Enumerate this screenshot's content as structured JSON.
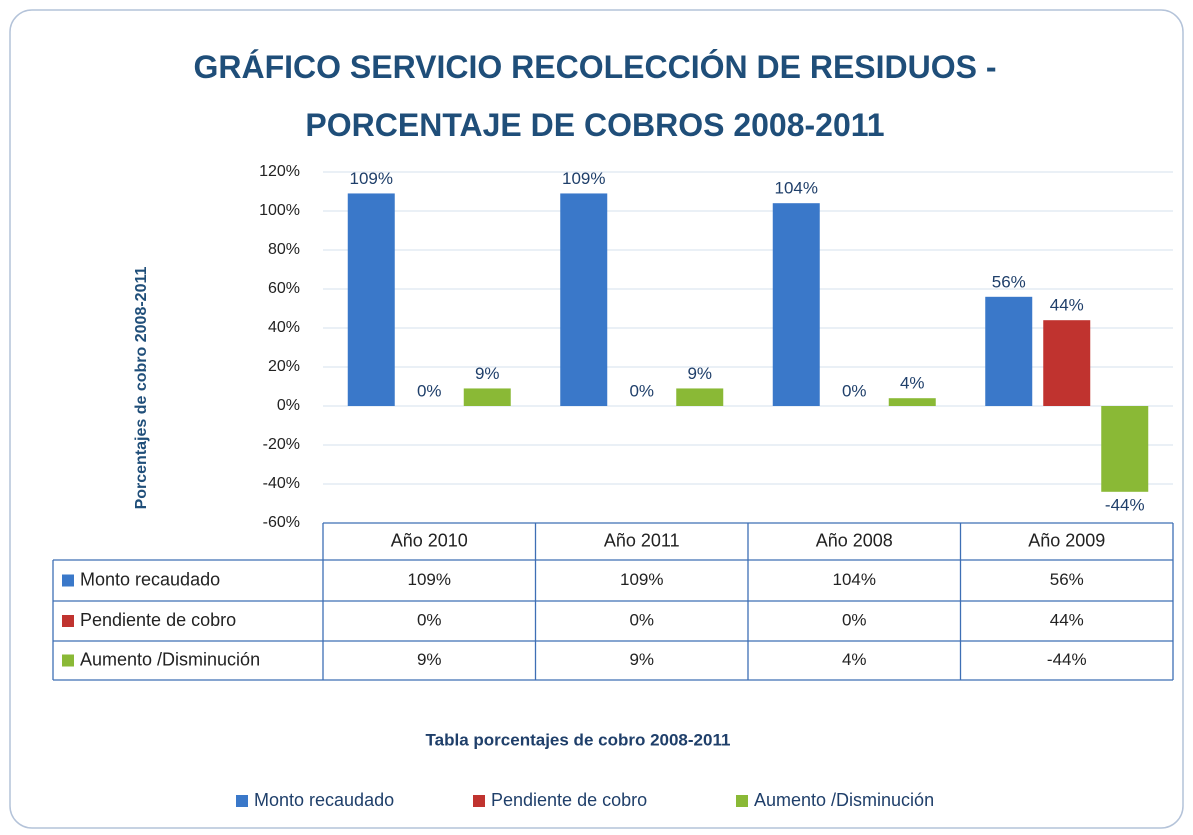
{
  "chart_data": {
    "type": "bar",
    "title": "GRÁFICO SERVICIO RECOLECCIÓN DE RESIDUOS - PORCENTAJE DE COBROS 2008-2011",
    "y_label": "Porcentajes de cobro 2008-2011",
    "x_label": "Tabla porcentajes de cobro 2008-2011",
    "categories": [
      "Año 2010",
      "Año 2011",
      "Año 2008",
      "Año 2009"
    ],
    "series": [
      {
        "name": "Monto recaudado",
        "color": "#3a78c9",
        "values": [
          109,
          109,
          104,
          56
        ],
        "value_labels": [
          "109%",
          "109%",
          "104%",
          "56%"
        ]
      },
      {
        "name": "Pendiente de cobro",
        "color": "#c0332f",
        "values": [
          0,
          0,
          0,
          44
        ],
        "value_labels": [
          "0%",
          "0%",
          "0%",
          "44%"
        ]
      },
      {
        "name": "Aumento /Disminución",
        "color": "#8ab936",
        "values": [
          9,
          9,
          4,
          -44
        ],
        "value_labels": [
          "9%",
          "9%",
          "4%",
          "-44%"
        ]
      }
    ],
    "ylim": [
      -60,
      120
    ],
    "yticks": [
      {
        "value": -60,
        "label": "-60%"
      },
      {
        "value": -40,
        "label": "-40%"
      },
      {
        "value": -20,
        "label": "-20%"
      },
      {
        "value": 0,
        "label": "0%"
      },
      {
        "value": 20,
        "label": "20%"
      },
      {
        "value": 40,
        "label": "40%"
      },
      {
        "value": 60,
        "label": "60%"
      },
      {
        "value": 80,
        "label": "80%"
      },
      {
        "value": 100,
        "label": "100%"
      },
      {
        "value": 120,
        "label": "120%"
      }
    ],
    "grid": true,
    "legend": "bottom",
    "data_table": true
  }
}
